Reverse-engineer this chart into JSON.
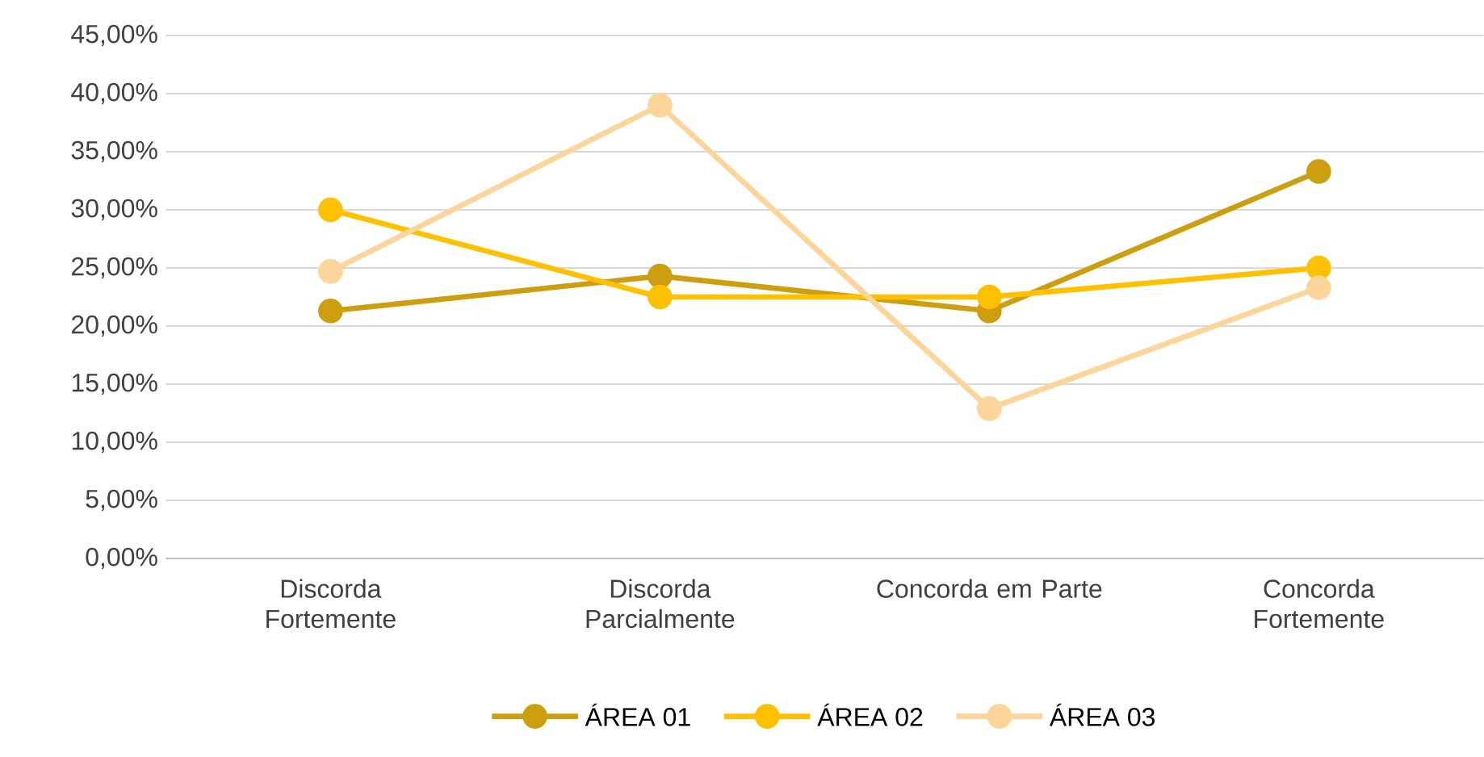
{
  "chart_data": {
    "type": "line",
    "categories": [
      "Discorda Fortemente",
      "Discorda Parcialmente",
      "Concorda em Parte",
      "Concorda Fortemente"
    ],
    "series": [
      {
        "name": "ÁREA 01",
        "color": "#cc9e10",
        "values": [
          21.3,
          24.3,
          21.3,
          33.3
        ]
      },
      {
        "name": "ÁREA 02",
        "color": "#ffc000",
        "values": [
          30.0,
          22.5,
          22.5,
          25.0
        ]
      },
      {
        "name": "ÁREA 03",
        "color": "#fdd49a",
        "values": [
          24.7,
          39.0,
          12.9,
          23.3
        ]
      }
    ],
    "ylim": [
      0,
      45
    ],
    "yticks": [
      {
        "value": 0,
        "label": "0,00%"
      },
      {
        "value": 5,
        "label": "5,00%"
      },
      {
        "value": 10,
        "label": "10,00%"
      },
      {
        "value": 15,
        "label": "15,00%"
      },
      {
        "value": 20,
        "label": "20,00%"
      },
      {
        "value": 25,
        "label": "25,00%"
      },
      {
        "value": 30,
        "label": "30,00%"
      },
      {
        "value": 35,
        "label": "35,00%"
      },
      {
        "value": 40,
        "label": "40,00%"
      },
      {
        "value": 45,
        "label": "45,00%"
      }
    ],
    "grid": "y",
    "legend": "bottom",
    "marker": "circle",
    "line_style": "solid"
  }
}
